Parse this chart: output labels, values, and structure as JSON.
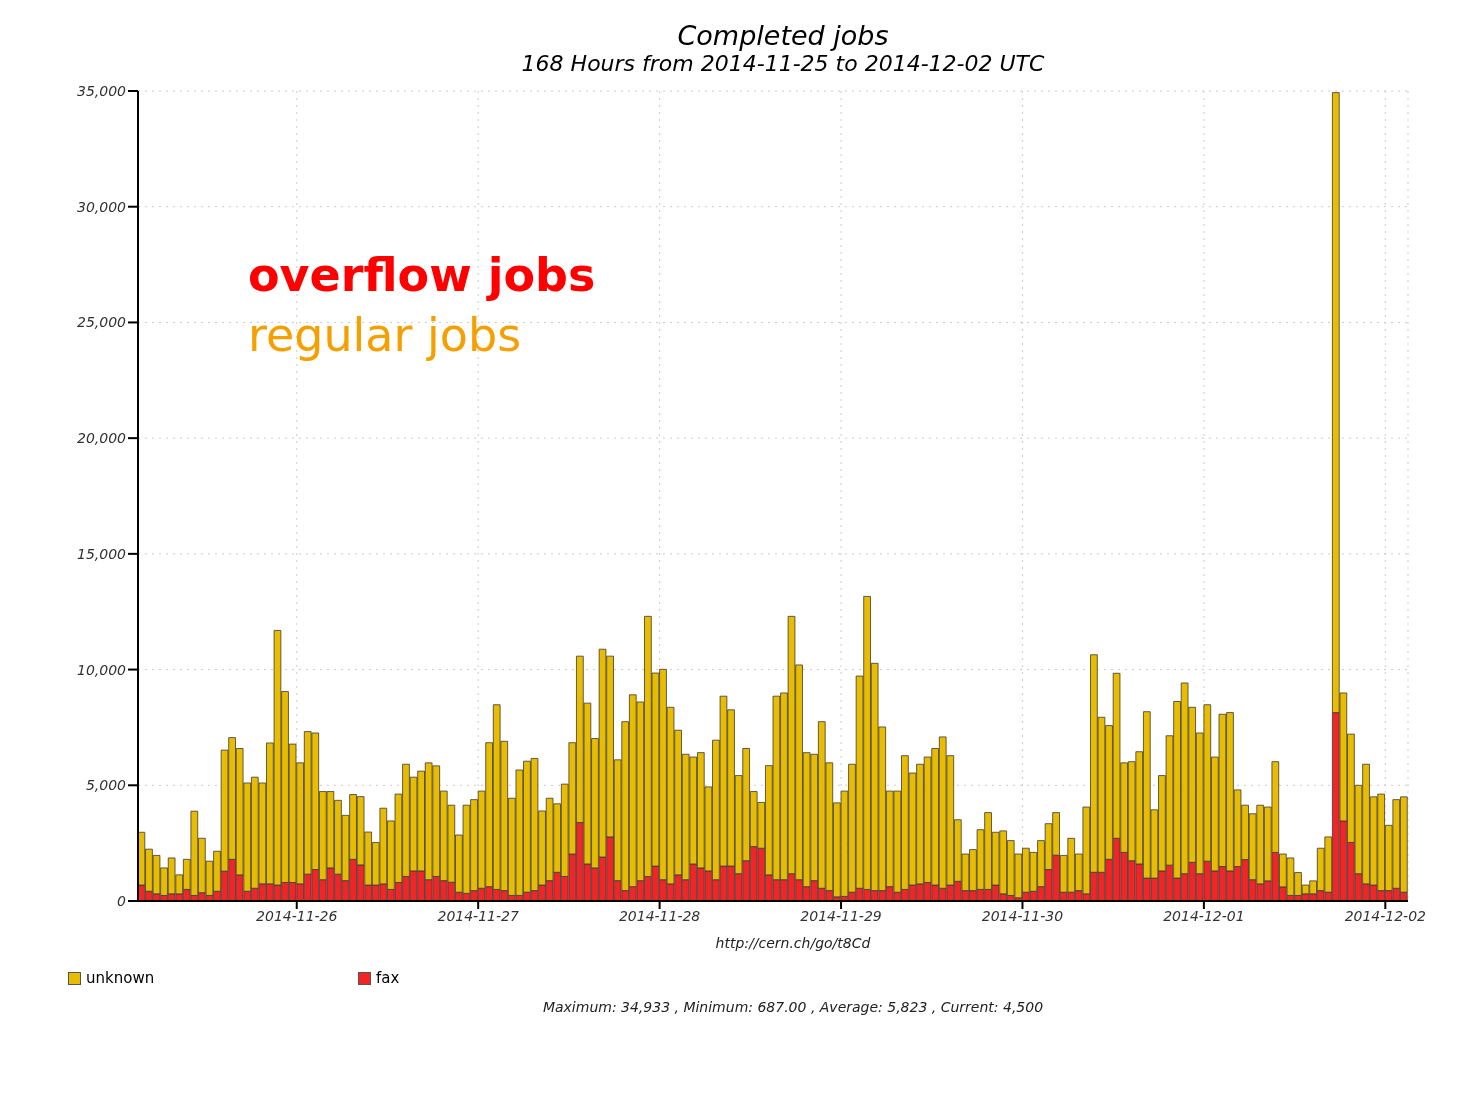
{
  "chart_data": {
    "type": "bar",
    "stacked": true,
    "title": "Completed jobs",
    "subtitle": "168 Hours from 2014-11-25 to 2014-12-02 UTC",
    "annotations": [
      "overflow jobs",
      "regular jobs",
      "http://cern.ch/go/t8Cd",
      "Maximum: 34,933 , Minimum: 687.00 , Average: 5,823 , Current: 4,500"
    ],
    "x": [
      "2014-11-25T03:30",
      "2014-11-25T04:30",
      "2014-11-25T05:30",
      "2014-11-25T06:30",
      "2014-11-25T07:30",
      "2014-11-25T08:30",
      "2014-11-25T09:30",
      "2014-11-25T10:30",
      "2014-11-25T11:30",
      "2014-11-25T12:30",
      "2014-11-25T13:30",
      "2014-11-25T14:30",
      "2014-11-25T15:30",
      "2014-11-25T16:30",
      "2014-11-25T17:30",
      "2014-11-25T18:30",
      "2014-11-25T19:30",
      "2014-11-25T20:30",
      "2014-11-25T21:30",
      "2014-11-25T22:30",
      "2014-11-25T23:30",
      "2014-11-26T00:30",
      "2014-11-26T01:30",
      "2014-11-26T02:30",
      "2014-11-26T03:30",
      "2014-11-26T04:30",
      "2014-11-26T05:30",
      "2014-11-26T06:30",
      "2014-11-26T07:30",
      "2014-11-26T08:30",
      "2014-11-26T09:30",
      "2014-11-26T10:30",
      "2014-11-26T11:30",
      "2014-11-26T12:30",
      "2014-11-26T13:30",
      "2014-11-26T14:30",
      "2014-11-26T15:30",
      "2014-11-26T16:30",
      "2014-11-26T17:30",
      "2014-11-26T18:30",
      "2014-11-26T19:30",
      "2014-11-26T20:30",
      "2014-11-26T21:30",
      "2014-11-26T22:30",
      "2014-11-26T23:30",
      "2014-11-27T00:30",
      "2014-11-27T01:30",
      "2014-11-27T02:30",
      "2014-11-27T03:30",
      "2014-11-27T04:30",
      "2014-11-27T05:30",
      "2014-11-27T06:30",
      "2014-11-27T07:30",
      "2014-11-27T08:30",
      "2014-11-27T09:30",
      "2014-11-27T10:30",
      "2014-11-27T11:30",
      "2014-11-27T12:30",
      "2014-11-27T13:30",
      "2014-11-27T14:30",
      "2014-11-27T15:30",
      "2014-11-27T16:30",
      "2014-11-27T17:30",
      "2014-11-27T18:30",
      "2014-11-27T19:30",
      "2014-11-27T20:30",
      "2014-11-27T21:30",
      "2014-11-27T22:30",
      "2014-11-27T23:30",
      "2014-11-28T00:30",
      "2014-11-28T01:30",
      "2014-11-28T02:30",
      "2014-11-28T03:30",
      "2014-11-28T04:30",
      "2014-11-28T05:30",
      "2014-11-28T06:30",
      "2014-11-28T07:30",
      "2014-11-28T08:30",
      "2014-11-28T09:30",
      "2014-11-28T10:30",
      "2014-11-28T11:30",
      "2014-11-28T12:30",
      "2014-11-28T13:30",
      "2014-11-28T14:30",
      "2014-11-28T15:30",
      "2014-11-28T16:30",
      "2014-11-28T17:30",
      "2014-11-28T18:30",
      "2014-11-28T19:30",
      "2014-11-28T20:30",
      "2014-11-28T21:30",
      "2014-11-28T22:30",
      "2014-11-28T23:30",
      "2014-11-29T00:30",
      "2014-11-29T01:30",
      "2014-11-29T02:30",
      "2014-11-29T03:30",
      "2014-11-29T04:30",
      "2014-11-29T05:30",
      "2014-11-29T06:30",
      "2014-11-29T07:30",
      "2014-11-29T08:30",
      "2014-11-29T09:30",
      "2014-11-29T10:30",
      "2014-11-29T11:30",
      "2014-11-29T12:30",
      "2014-11-29T13:30",
      "2014-11-29T14:30",
      "2014-11-29T15:30",
      "2014-11-29T16:30",
      "2014-11-29T17:30",
      "2014-11-29T18:30",
      "2014-11-29T19:30",
      "2014-11-29T20:30",
      "2014-11-29T21:30",
      "2014-11-29T22:30",
      "2014-11-29T23:30",
      "2014-11-30T00:30",
      "2014-11-30T01:30",
      "2014-11-30T02:30",
      "2014-11-30T03:30",
      "2014-11-30T04:30",
      "2014-11-30T05:30",
      "2014-11-30T06:30",
      "2014-11-30T07:30",
      "2014-11-30T08:30",
      "2014-11-30T09:30",
      "2014-11-30T10:30",
      "2014-11-30T11:30",
      "2014-11-30T12:30",
      "2014-11-30T13:30",
      "2014-11-30T14:30",
      "2014-11-30T15:30",
      "2014-11-30T16:30",
      "2014-11-30T17:30",
      "2014-11-30T18:30",
      "2014-11-30T19:30",
      "2014-11-30T20:30",
      "2014-11-30T21:30",
      "2014-11-30T22:30",
      "2014-11-30T23:30",
      "2014-12-01T00:30",
      "2014-12-01T01:30",
      "2014-12-01T02:30",
      "2014-12-01T03:30",
      "2014-12-01T04:30",
      "2014-12-01T05:30",
      "2014-12-01T06:30",
      "2014-12-01T07:30",
      "2014-12-01T08:30",
      "2014-12-01T09:30",
      "2014-12-01T10:30",
      "2014-12-01T11:30",
      "2014-12-01T12:30",
      "2014-12-01T13:30",
      "2014-12-01T14:30",
      "2014-12-01T15:30",
      "2014-12-01T16:30",
      "2014-12-01T17:30",
      "2014-12-01T18:30",
      "2014-12-01T19:30",
      "2014-12-01T20:30",
      "2014-12-01T21:30",
      "2014-12-01T22:30",
      "2014-12-01T23:30",
      "2014-12-02T00:30",
      "2014-12-02T01:30",
      "2014-12-02T02:30"
    ],
    "series": [
      {
        "name": "fax",
        "color": "#f22424",
        "values": [
          690,
          420,
          310,
          240,
          310,
          310,
          500,
          240,
          360,
          240,
          420,
          1290,
          1800,
          1130,
          420,
          550,
          740,
          740,
          690,
          800,
          800,
          740,
          1160,
          1360,
          920,
          1430,
          1160,
          880,
          1800,
          1560,
          690,
          690,
          740,
          500,
          800,
          1060,
          1300,
          1300,
          920,
          1060,
          880,
          810,
          380,
          330,
          450,
          550,
          620,
          500,
          450,
          240,
          240,
          380,
          450,
          690,
          880,
          1240,
          1060,
          2030,
          3390,
          1600,
          1430,
          1900,
          2770,
          880,
          450,
          620,
          880,
          1060,
          1510,
          920,
          740,
          1130,
          920,
          1600,
          1430,
          1300,
          920,
          1510,
          1510,
          1180,
          1740,
          2350,
          2280,
          1130,
          920,
          920,
          1180,
          920,
          620,
          880,
          550,
          450,
          180,
          200,
          380,
          550,
          500,
          450,
          450,
          620,
          380,
          500,
          690,
          740,
          800,
          690,
          550,
          690,
          850,
          450,
          450,
          500,
          500,
          690,
          310,
          240,
          140,
          380,
          420,
          620,
          1360,
          1980,
          380,
          380,
          450,
          310,
          1240,
          1240,
          1800,
          2710,
          2100,
          1740,
          1600,
          990,
          990,
          1300,
          1550,
          990,
          1180,
          1670,
          1180,
          1720,
          1300,
          1490,
          1300,
          1490,
          1790,
          920,
          740,
          870,
          2100,
          610,
          240,
          240,
          310,
          310,
          450,
          380,
          8140,
          3460,
          2530,
          1180,
          740,
          690,
          450,
          450,
          550,
          380
        ]
      },
      {
        "name": "unknown",
        "color": "#e8bc00",
        "values": [
          2280,
          1820,
          1660,
          1190,
          1550,
          820,
          1300,
          3640,
          2350,
          1480,
          1730,
          5230,
          5260,
          5460,
          4680,
          4800,
          4360,
          6090,
          11000,
          8250,
          5980,
          5230,
          6160,
          5900,
          3810,
          3300,
          3190,
          2820,
          2800,
          2950,
          2290,
          1840,
          3270,
          2960,
          3820,
          4850,
          4050,
          4310,
          5050,
          4780,
          3870,
          3330,
          2470,
          3810,
          3930,
          4200,
          6220,
          7980,
          6450,
          4200,
          5420,
          5660,
          5710,
          3200,
          3560,
          2960,
          3990,
          4810,
          7190,
          6950,
          5590,
          8980,
          7810,
          5220,
          7300,
          8290,
          7720,
          11240,
          8340,
          9090,
          7630,
          6250,
          5420,
          4620,
          4980,
          3630,
          6030,
          7340,
          6750,
          4240,
          4850,
          2380,
          1980,
          4720,
          7930,
          8070,
          11120,
          9280,
          5790,
          5460,
          7200,
          5520,
          4060,
          4550,
          5530,
          9170,
          12660,
          9820,
          7070,
          4130,
          4370,
          5780,
          4840,
          5170,
          5420,
          5900,
          6540,
          5590,
          2660,
          1580,
          1770,
          2580,
          3320,
          2280,
          2720,
          2370,
          1890,
          1900,
          1680,
          1990,
          1980,
          1840,
          1590,
          2330,
          1580,
          3750,
          9400,
          6700,
          5780,
          7130,
          3870,
          4280,
          4850,
          7190,
          2950,
          4120,
          5590,
          7630,
          8240,
          6700,
          6080,
          6760,
          4920,
          6580,
          6840,
          3310,
          2350,
          2850,
          3400,
          3190,
          3920,
          1420,
          1620,
          990,
          380,
          560,
          1830,
          2390,
          26790,
          5530,
          4680,
          3820,
          5170,
          3810,
          4170,
          2820,
          3830,
          4120
        ]
      }
    ],
    "xlim": [
      "2014-11-25T03:00",
      "2014-12-02T03:00"
    ],
    "xticks": [
      "2014-11-26",
      "2014-11-27",
      "2014-11-28",
      "2014-11-29",
      "2014-11-30",
      "2014-12-01",
      "2014-12-02"
    ],
    "ylim": [
      0,
      35000
    ],
    "yticks": [
      0,
      {
        "value": 5000,
        "label": "5,000"
      },
      {
        "value": 10000,
        "label": "10,000"
      },
      {
        "value": 15000,
        "label": "15,000"
      },
      {
        "value": 20000,
        "label": "20,000"
      },
      {
        "value": 25000,
        "label": "25,000"
      },
      {
        "value": 30000,
        "label": "30,000"
      },
      {
        "value": 35000,
        "label": "35,000"
      }
    ],
    "grid": true,
    "legend": "bottom left"
  }
}
